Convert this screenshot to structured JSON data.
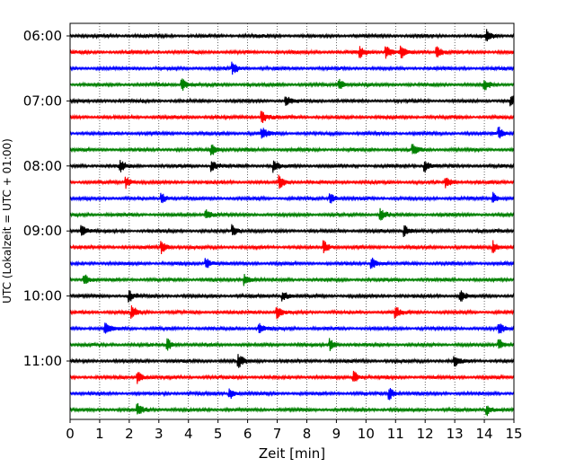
{
  "chart_data": {
    "type": "line",
    "subtype": "helicorder",
    "xlabel": "Zeit  [min]",
    "ylabel": "UTC (Lokalzeit = UTC + 01:00)",
    "xlim": [
      0,
      15
    ],
    "x_ticks": [
      0,
      1,
      2,
      3,
      4,
      5,
      6,
      7,
      8,
      9,
      10,
      11,
      12,
      13,
      14,
      15
    ],
    "x_tick_labels": [
      "0",
      "1",
      "2",
      "3",
      "4",
      "5",
      "6",
      "7",
      "8",
      "9",
      "10",
      "11",
      "12",
      "13",
      "14",
      "15"
    ],
    "y_tick_labels": [
      "06:00",
      "07:00",
      "08:00",
      "09:00",
      "10:00",
      "11:00"
    ],
    "y_tick_row_index": [
      0,
      4,
      8,
      12,
      16,
      20
    ],
    "grid_x": true,
    "grid_style": "dotted",
    "trace_interval_minutes": 15,
    "trace_start_times": [
      "06:00",
      "06:15",
      "06:30",
      "06:45",
      "07:00",
      "07:15",
      "07:30",
      "07:45",
      "08:00",
      "08:15",
      "08:30",
      "08:45",
      "09:00",
      "09:15",
      "09:30",
      "09:45",
      "10:00",
      "10:15",
      "10:30",
      "10:45",
      "11:00",
      "11:15",
      "11:30",
      "11:45"
    ],
    "trace_colors": [
      "#000000",
      "#ff0000",
      "#0000ff",
      "#008000"
    ],
    "event_minutes": [
      [
        14.1
      ],
      [
        9.8,
        10.7,
        11.2,
        12.4
      ],
      [
        5.5
      ],
      [
        3.8,
        9.1,
        14.0
      ],
      [
        7.3,
        14.9
      ],
      [
        6.5
      ],
      [
        6.5,
        14.5
      ],
      [
        4.8,
        11.6
      ],
      [
        1.7,
        4.8,
        6.9,
        12.0
      ],
      [
        1.9,
        7.1,
        12.7
      ],
      [
        3.1,
        8.8,
        14.3
      ],
      [
        4.6,
        10.5
      ],
      [
        0.4,
        5.5,
        11.3
      ],
      [
        3.1,
        8.6,
        14.3
      ],
      [
        4.6,
        10.2
      ],
      [
        0.5,
        5.9
      ],
      [
        2.0,
        7.2,
        13.2
      ],
      [
        2.1,
        7.0,
        11.0
      ],
      [
        1.2,
        6.4,
        14.5
      ],
      [
        3.3,
        8.8,
        14.5
      ],
      [
        5.7,
        13.0
      ],
      [
        2.3,
        9.6
      ],
      [
        5.4,
        10.8
      ],
      [
        2.3,
        14.1
      ]
    ]
  }
}
